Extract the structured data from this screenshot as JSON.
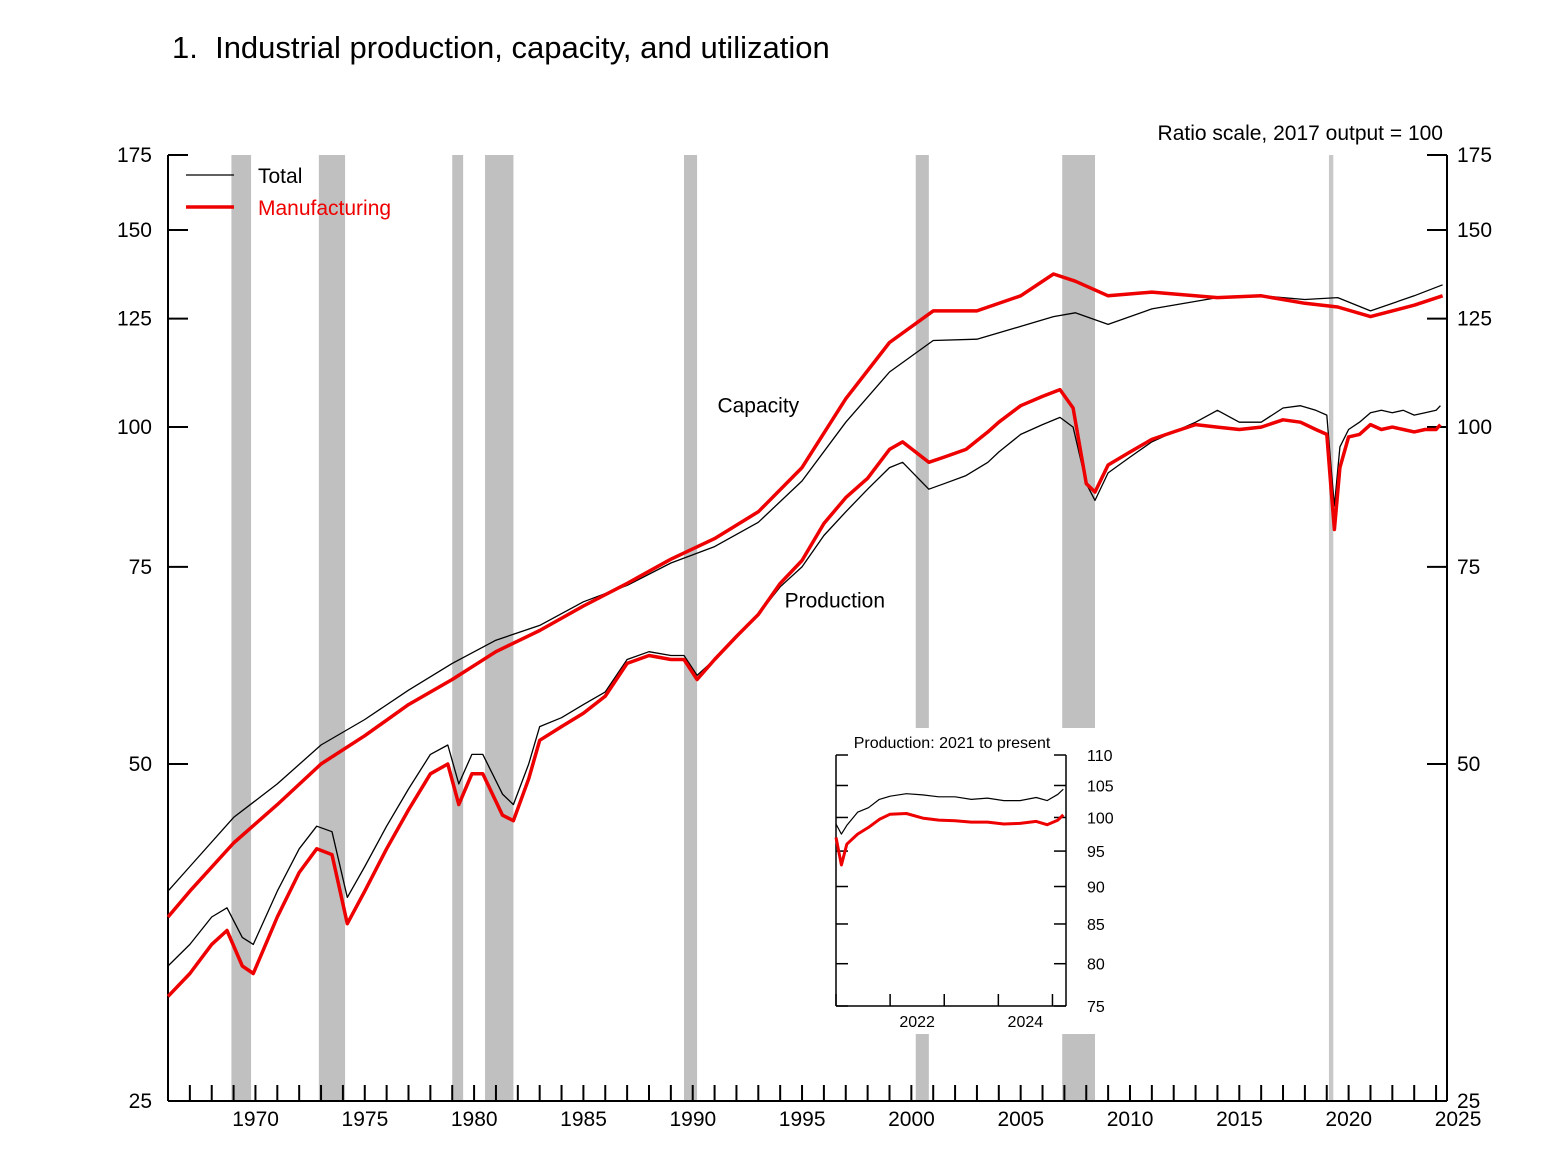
{
  "chart_data": {
    "type": "line",
    "title": "1.  Industrial production, capacity, and utilization",
    "scale_note": "Ratio scale, 2017 output = 100",
    "y_scale": "log",
    "ylim": [
      25,
      175
    ],
    "y_ticks": [
      25,
      50,
      75,
      100,
      125,
      150,
      175
    ],
    "xlim": [
      1967.0,
      2025.5
    ],
    "x_ticks": [
      1970,
      1975,
      1980,
      1985,
      1990,
      1995,
      2000,
      2005,
      2010,
      2015,
      2020,
      2025
    ],
    "legend": {
      "placement": "top-left",
      "entries": [
        {
          "label": "Total",
          "color": "#000000"
        },
        {
          "label": "Manufacturing",
          "color": "#ee0000"
        }
      ]
    },
    "annotations": [
      {
        "text": "Capacity",
        "x": 1994.0,
        "y": 103
      },
      {
        "text": "Production",
        "x": 1997.5,
        "y": 69
      }
    ],
    "recessions": [
      [
        1969.9,
        1970.8
      ],
      [
        1973.9,
        1975.1
      ],
      [
        1980.0,
        1980.5
      ],
      [
        1981.5,
        1982.8
      ],
      [
        1990.6,
        1991.2
      ],
      [
        2001.2,
        2001.8
      ],
      [
        2007.9,
        2009.4
      ],
      [
        2020.1,
        2020.3
      ]
    ],
    "series": [
      {
        "name": "Total",
        "group": "Capacity",
        "color": "#000000",
        "x": [
          1967,
          1968,
          1970,
          1972,
          1974,
          1976,
          1978,
          1980,
          1982,
          1984,
          1986,
          1988,
          1990,
          1992,
          1994,
          1996,
          1998,
          2000,
          2002,
          2004,
          2006,
          2007.5,
          2008.5,
          2010,
          2012,
          2015,
          2017,
          2019,
          2020.5,
          2022,
          2024,
          2025.3
        ],
        "values": [
          38.5,
          40.5,
          44.8,
          48.0,
          52.0,
          54.8,
          58.2,
          61.5,
          64.5,
          66.5,
          69.8,
          72.2,
          75.6,
          78.2,
          82.2,
          89.5,
          101.0,
          112.0,
          119.5,
          119.8,
          123.0,
          125.5,
          126.5,
          123.5,
          127.5,
          130.5,
          131.0,
          130.0,
          130.5,
          127.0,
          131.0,
          134.0
        ]
      },
      {
        "name": "Manufacturing",
        "group": "Capacity",
        "color": "#ee0000",
        "x": [
          1967,
          1968,
          1970,
          1972,
          1974,
          1976,
          1978,
          1980,
          1982,
          1984,
          1986,
          1988,
          1990,
          1992,
          1994,
          1996,
          1998,
          2000,
          2002,
          2004,
          2006,
          2007.5,
          2008.5,
          2010,
          2012,
          2015,
          2017,
          2019,
          2020.5,
          2022,
          2024,
          2025.3
        ],
        "values": [
          36.5,
          38.5,
          42.5,
          46.0,
          50.0,
          53.0,
          56.5,
          59.5,
          63.0,
          65.8,
          69.2,
          72.5,
          76.2,
          79.5,
          84.0,
          92.0,
          106.0,
          119.0,
          127.0,
          127.0,
          131.0,
          137.0,
          135.0,
          131.0,
          132.0,
          130.5,
          131.0,
          129.0,
          128.0,
          125.5,
          128.5,
          131.0
        ]
      },
      {
        "name": "Total",
        "group": "Production",
        "color": "#000000",
        "x": [
          1967,
          1968,
          1969,
          1969.7,
          1970.4,
          1970.9,
          1972,
          1973,
          1973.8,
          1974.5,
          1975.2,
          1976,
          1977,
          1978,
          1979,
          1979.8,
          1980.3,
          1980.9,
          1981.4,
          1982.3,
          1982.8,
          1983.5,
          1984,
          1985,
          1986,
          1987,
          1988,
          1989,
          1990,
          1990.6,
          1991.2,
          1992,
          1993,
          1994,
          1995,
          1996,
          1997,
          1998,
          1999,
          2000,
          2000.6,
          2001.8,
          2002.5,
          2003.5,
          2004.5,
          2005,
          2006,
          2007,
          2007.8,
          2008.4,
          2009,
          2009.4,
          2010,
          2011,
          2012,
          2013,
          2014,
          2015,
          2016,
          2017,
          2018,
          2018.8,
          2019.5,
          2020.0,
          2020.2,
          2020.35,
          2020.6,
          2021,
          2021.5,
          2022,
          2022.5,
          2023,
          2023.5,
          2024,
          2024.5,
          2025,
          2025.2
        ],
        "values": [
          33.0,
          34.5,
          36.5,
          37.2,
          35.0,
          34.5,
          38.5,
          42.0,
          44.0,
          43.5,
          38.0,
          40.5,
          44.0,
          47.5,
          51.0,
          52.0,
          48.0,
          51.0,
          51.0,
          47.0,
          46.0,
          50.0,
          54.0,
          55.0,
          56.5,
          58.0,
          62.0,
          63.0,
          62.5,
          62.5,
          60.0,
          62.0,
          65.0,
          68.0,
          72.0,
          75.0,
          80.0,
          84.0,
          88.0,
          92.0,
          93.0,
          88.0,
          89.0,
          90.5,
          93.0,
          95.0,
          98.5,
          100.5,
          102.0,
          100.0,
          89.0,
          86.0,
          91.0,
          94.0,
          97.0,
          99.0,
          101.0,
          103.5,
          101.0,
          101.0,
          104.0,
          104.5,
          103.5,
          102.5,
          92.0,
          85.0,
          96.0,
          99.5,
          101.0,
          103.0,
          103.5,
          103.0,
          103.5,
          102.5,
          103.0,
          103.5,
          104.5
        ]
      },
      {
        "name": "Manufacturing",
        "group": "Production",
        "color": "#ee0000",
        "x": [
          1967,
          1968,
          1969,
          1969.7,
          1970.4,
          1970.9,
          1972,
          1973,
          1973.8,
          1974.5,
          1975.2,
          1976,
          1977,
          1978,
          1979,
          1979.8,
          1980.3,
          1980.9,
          1981.4,
          1982.3,
          1982.8,
          1983.5,
          1984,
          1985,
          1986,
          1987,
          1988,
          1989,
          1990,
          1990.6,
          1991.2,
          1992,
          1993,
          1994,
          1995,
          1996,
          1997,
          1998,
          1999,
          2000,
          2000.6,
          2001.8,
          2002.5,
          2003.5,
          2004.5,
          2005,
          2006,
          2007,
          2007.8,
          2008.4,
          2009,
          2009.4,
          2010,
          2011,
          2012,
          2013,
          2014,
          2015,
          2016,
          2017,
          2018,
          2018.8,
          2019.5,
          2020.0,
          2020.2,
          2020.35,
          2020.6,
          2021,
          2021.5,
          2022,
          2022.5,
          2023,
          2023.5,
          2024,
          2024.5,
          2025,
          2025.2
        ],
        "values": [
          31.0,
          32.5,
          34.5,
          35.5,
          33.0,
          32.5,
          36.5,
          40.0,
          42.0,
          41.5,
          36.0,
          38.5,
          42.0,
          45.5,
          49.0,
          50.0,
          46.0,
          49.0,
          49.0,
          45.0,
          44.5,
          48.5,
          52.5,
          54.0,
          55.5,
          57.5,
          61.5,
          62.5,
          62.0,
          62.0,
          59.5,
          62.0,
          65.0,
          68.0,
          72.5,
          76.0,
          82.0,
          86.5,
          90.0,
          95.5,
          97.0,
          93.0,
          94.0,
          95.5,
          99.0,
          101.0,
          104.5,
          106.5,
          108.0,
          104.0,
          89.0,
          87.5,
          92.5,
          95.0,
          97.5,
          99.0,
          100.5,
          100.0,
          99.5,
          100.0,
          101.5,
          101.0,
          99.5,
          98.5,
          88.0,
          81.0,
          92.0,
          98.0,
          98.5,
          100.5,
          99.5,
          100.0,
          99.5,
          99.0,
          99.5,
          99.5,
          100.5
        ]
      }
    ],
    "inset": {
      "title": "Production: 2021 to present",
      "type": "line",
      "y_scale": "log",
      "ylim": [
        75,
        110
      ],
      "y_ticks": [
        75,
        80,
        85,
        90,
        95,
        100,
        105,
        110
      ],
      "xlim": [
        2021.0,
        2025.25
      ],
      "x_ticks": [
        2022,
        2024
      ],
      "series": [
        {
          "name": "Total",
          "color": "#000000",
          "x": [
            2021.0,
            2021.1,
            2021.2,
            2021.4,
            2021.6,
            2021.8,
            2022.0,
            2022.3,
            2022.6,
            2022.9,
            2023.2,
            2023.5,
            2023.8,
            2024.1,
            2024.4,
            2024.7,
            2024.9,
            2025.1,
            2025.2
          ],
          "values": [
            99.0,
            97.5,
            98.8,
            100.8,
            101.5,
            102.8,
            103.3,
            103.7,
            103.5,
            103.2,
            103.2,
            102.8,
            103.0,
            102.6,
            102.6,
            103.1,
            102.6,
            103.6,
            104.4
          ]
        },
        {
          "name": "Manufacturing",
          "color": "#ee0000",
          "x": [
            2021.0,
            2021.1,
            2021.2,
            2021.4,
            2021.6,
            2021.8,
            2022.0,
            2022.3,
            2022.6,
            2022.9,
            2023.2,
            2023.5,
            2023.8,
            2024.1,
            2024.4,
            2024.7,
            2024.9,
            2025.1,
            2025.2
          ],
          "values": [
            97.0,
            93.0,
            96.0,
            97.5,
            98.5,
            99.7,
            100.5,
            100.6,
            99.9,
            99.6,
            99.5,
            99.3,
            99.3,
            99.0,
            99.1,
            99.4,
            98.9,
            99.6,
            100.4
          ]
        }
      ]
    }
  }
}
